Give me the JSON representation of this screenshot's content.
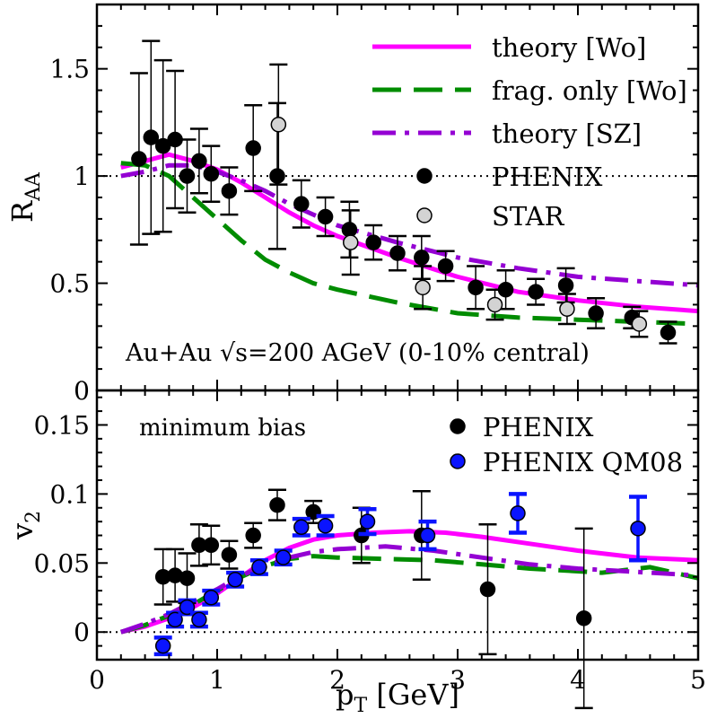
{
  "chart_data": [
    {
      "type": "line",
      "panel": "top",
      "ylabel": "R",
      "ylabel_sub": "AA",
      "xlim": [
        0,
        5
      ],
      "ylim": [
        0,
        1.8
      ],
      "yticks": [
        0,
        0.5,
        1,
        1.5
      ],
      "ytick_labels": [
        "0",
        "0.5",
        "1",
        "1.5"
      ],
      "annotation": "Au+Au √s=200 AGeV (0-10% central)",
      "reference_line": 1,
      "lines": [
        {
          "name": "theory [Wo]",
          "color": "#ff00ff",
          "style": "solid",
          "x": [
            0.2,
            0.4,
            0.6,
            0.8,
            1.0,
            1.2,
            1.4,
            1.6,
            1.8,
            2.0,
            2.5,
            3.0,
            3.5,
            4.0,
            4.5,
            5.0
          ],
          "y": [
            1.04,
            1.07,
            1.1,
            1.07,
            1.03,
            0.97,
            0.9,
            0.83,
            0.77,
            0.72,
            0.62,
            0.53,
            0.46,
            0.42,
            0.39,
            0.37
          ]
        },
        {
          "name": "frag. only [Wo]",
          "color": "#008c00",
          "style": "dashed",
          "x": [
            0.2,
            0.4,
            0.6,
            0.8,
            1.0,
            1.2,
            1.4,
            1.6,
            1.8,
            2.0,
            2.5,
            3.0,
            3.5,
            4.0,
            4.5,
            5.0
          ],
          "y": [
            1.06,
            1.05,
            1.0,
            0.9,
            0.8,
            0.7,
            0.61,
            0.55,
            0.5,
            0.47,
            0.41,
            0.36,
            0.34,
            0.33,
            0.32,
            0.31
          ]
        },
        {
          "name": "theory [SZ]",
          "color": "#9400d3",
          "style": "dashdot",
          "x": [
            0.2,
            0.4,
            0.6,
            0.8,
            1.0,
            1.2,
            1.4,
            1.6,
            1.8,
            2.0,
            2.5,
            3.0,
            3.5,
            4.0,
            4.5,
            5.0
          ],
          "y": [
            1.0,
            1.02,
            1.05,
            1.05,
            1.02,
            0.98,
            0.93,
            0.87,
            0.82,
            0.77,
            0.69,
            0.62,
            0.57,
            0.53,
            0.51,
            0.49
          ]
        }
      ],
      "points": [
        {
          "name": "PHENIX",
          "fill": "#000000",
          "x": [
            0.35,
            0.45,
            0.55,
            0.65,
            0.75,
            0.85,
            0.95,
            1.1,
            1.3,
            1.5,
            1.7,
            1.9,
            2.1,
            2.3,
            2.5,
            2.7,
            2.9,
            3.15,
            3.4,
            3.65,
            3.9,
            4.15,
            4.45,
            4.75
          ],
          "y": [
            1.08,
            1.18,
            1.14,
            1.17,
            1.0,
            1.07,
            1.01,
            0.93,
            1.13,
            1.0,
            0.87,
            0.81,
            0.75,
            0.69,
            0.64,
            0.62,
            0.58,
            0.48,
            0.47,
            0.46,
            0.49,
            0.36,
            0.34,
            0.27
          ],
          "err": [
            0.4,
            0.45,
            0.4,
            0.32,
            0.17,
            0.15,
            0.13,
            0.11,
            0.2,
            0.34,
            0.11,
            0.09,
            0.13,
            0.08,
            0.08,
            0.1,
            0.07,
            0.1,
            0.09,
            0.06,
            0.08,
            0.07,
            0.05,
            0.05
          ]
        },
        {
          "name": "STAR",
          "fill": "#d3d3d3",
          "x": [
            1.51,
            2.11,
            2.71,
            3.31,
            3.91,
            4.51
          ],
          "y": [
            1.24,
            0.69,
            0.48,
            0.4,
            0.38,
            0.31
          ],
          "err": [
            0.28,
            0.15,
            0.1,
            0.07,
            0.07,
            0.06
          ]
        }
      ],
      "legend": [
        {
          "label": "theory [Wo]",
          "kind": "line",
          "series": 0
        },
        {
          "label": "frag. only [Wo]",
          "kind": "line",
          "series": 1
        },
        {
          "label": "theory [SZ]",
          "kind": "line",
          "series": 2
        },
        {
          "label": "PHENIX",
          "kind": "point",
          "series": 0
        },
        {
          "label": "STAR",
          "kind": "point",
          "series": 1
        }
      ]
    },
    {
      "type": "line",
      "panel": "bottom",
      "xlabel": "p",
      "xlabel_sub": "T",
      "xlabel_tail": " [GeV]",
      "ylabel": "v",
      "ylabel_sub": "2",
      "xlim": [
        0,
        5
      ],
      "ylim": [
        -0.02,
        0.175
      ],
      "xticks": [
        0,
        1,
        2,
        3,
        4,
        5
      ],
      "xtick_labels": [
        "0",
        "1",
        "2",
        "3",
        "4",
        "5"
      ],
      "yticks": [
        0,
        0.05,
        0.1,
        0.15
      ],
      "ytick_labels": [
        "0",
        "0.05",
        "0.1",
        "0.15"
      ],
      "annotation": "minimum bias",
      "reference_line": 0,
      "lines": [
        {
          "name": "theory [Wo]",
          "color": "#ff00ff",
          "style": "solid",
          "x": [
            0.2,
            0.4,
            0.6,
            0.8,
            1.0,
            1.2,
            1.4,
            1.6,
            1.8,
            2.0,
            2.3,
            2.6,
            2.9,
            3.2,
            3.6,
            4.0,
            4.5,
            5.0
          ],
          "y": [
            0.0,
            0.004,
            0.01,
            0.018,
            0.028,
            0.04,
            0.052,
            0.061,
            0.067,
            0.07,
            0.072,
            0.073,
            0.072,
            0.069,
            0.064,
            0.059,
            0.054,
            0.052
          ]
        },
        {
          "name": "frag. only [Wo]",
          "color": "#008c00",
          "style": "dashed",
          "x": [
            0.2,
            0.4,
            0.6,
            0.8,
            1.0,
            1.2,
            1.4,
            1.6,
            1.8,
            2.0,
            2.4,
            2.8,
            3.2,
            3.6,
            4.0,
            4.2,
            4.6,
            5.0
          ],
          "y": [
            0.0,
            0.005,
            0.012,
            0.02,
            0.03,
            0.04,
            0.048,
            0.053,
            0.055,
            0.054,
            0.053,
            0.052,
            0.049,
            0.046,
            0.044,
            0.043,
            0.047,
            0.039
          ]
        },
        {
          "name": "theory [SZ]",
          "color": "#9400d3",
          "style": "dashdot",
          "x": [
            0.2,
            0.4,
            0.6,
            0.8,
            1.0,
            1.2,
            1.4,
            1.6,
            1.8,
            2.0,
            2.4,
            2.8,
            3.2,
            3.6,
            4.0,
            4.4,
            5.0
          ],
          "y": [
            0.0,
            0.006,
            0.013,
            0.022,
            0.031,
            0.041,
            0.048,
            0.054,
            0.058,
            0.06,
            0.062,
            0.059,
            0.054,
            0.049,
            0.046,
            0.044,
            0.041
          ]
        }
      ],
      "points": [
        {
          "name": "PHENIX",
          "fill": "#000000",
          "x": [
            0.55,
            0.65,
            0.75,
            0.85,
            0.95,
            1.1,
            1.3,
            1.5,
            1.8,
            2.2,
            2.7,
            3.25,
            4.05
          ],
          "y": [
            0.04,
            0.041,
            0.039,
            0.063,
            0.063,
            0.056,
            0.07,
            0.092,
            0.087,
            0.07,
            0.07,
            0.031,
            0.01
          ],
          "err": [
            0.02,
            0.019,
            0.018,
            0.015,
            0.014,
            0.01,
            0.009,
            0.011,
            0.008,
            0.02,
            0.032,
            0.047,
            0.065
          ]
        },
        {
          "name": "PHENIX QM08",
          "fill": "#0a14ff",
          "x": [
            0.55,
            0.65,
            0.75,
            0.85,
            0.95,
            1.15,
            1.35,
            1.55,
            1.7,
            1.9,
            2.25,
            2.75,
            3.5,
            4.5
          ],
          "y": [
            -0.01,
            0.009,
            0.018,
            0.009,
            0.025,
            0.038,
            0.047,
            0.054,
            0.076,
            0.077,
            0.08,
            0.07,
            0.086,
            0.075
          ],
          "err": [
            0.006,
            0.005,
            0.005,
            0.005,
            0.005,
            0.005,
            0.005,
            0.005,
            0.006,
            0.007,
            0.009,
            0.01,
            0.014,
            0.023
          ]
        }
      ],
      "legend": [
        {
          "label": "PHENIX",
          "kind": "point",
          "series": 0
        },
        {
          "label": "PHENIX QM08",
          "kind": "point",
          "series": 1
        }
      ]
    }
  ]
}
